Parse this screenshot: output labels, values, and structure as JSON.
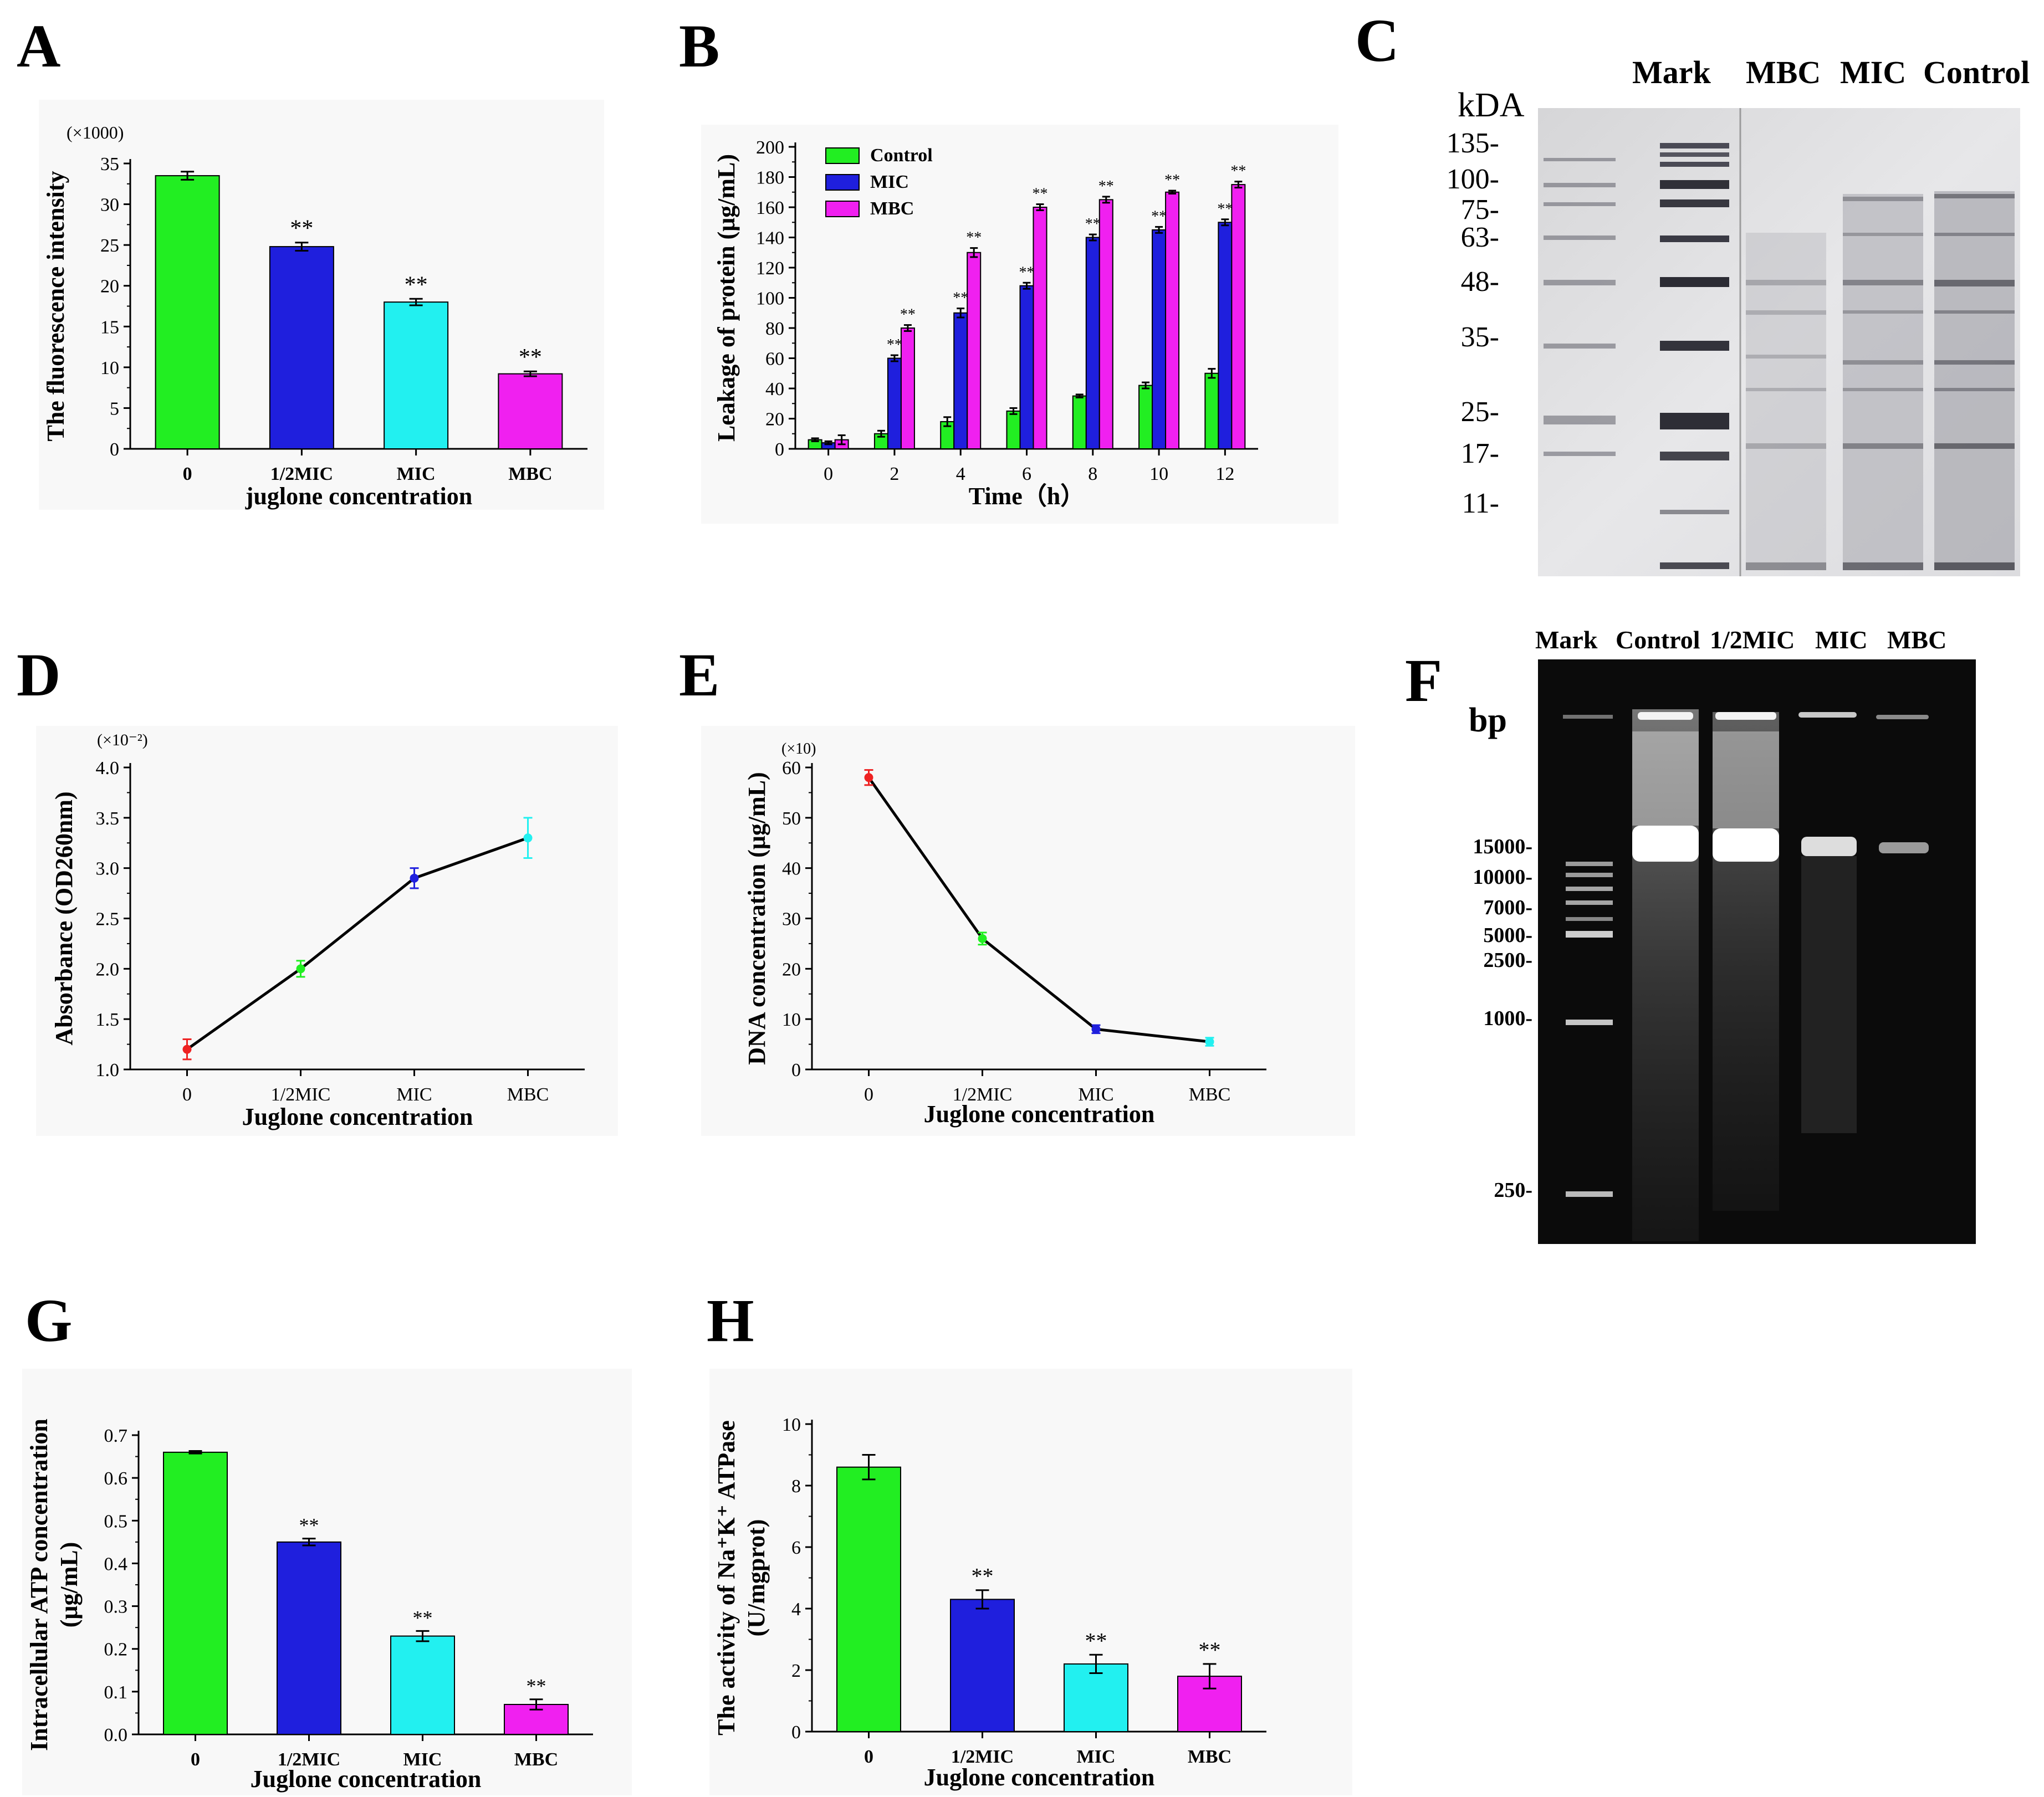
{
  "colors": {
    "green": "#22ee22",
    "blue": "#1f1fdd",
    "cyan": "#22f0f0",
    "magenta": "#f020f0",
    "red": "#ee2222",
    "black": "#000000"
  },
  "chart_data": [
    {
      "panel": "A",
      "type": "bar",
      "categories": [
        "0",
        "1/2MIC",
        "MIC",
        "MBC"
      ],
      "values": [
        33.5,
        24.8,
        18.0,
        9.2
      ],
      "errors": [
        0.5,
        0.5,
        0.4,
        0.3
      ],
      "significance": [
        "",
        "**",
        "**",
        "**"
      ],
      "colors": [
        "green",
        "blue",
        "cyan",
        "magenta"
      ],
      "ylabel": "The fluorescence intensity",
      "xlabel": "juglone concentration",
      "multiplier": "(×1000)",
      "ylim": [
        0,
        35
      ],
      "yticks": [
        0,
        5,
        10,
        15,
        20,
        25,
        30,
        35
      ]
    },
    {
      "panel": "B",
      "type": "bar",
      "x": [
        "0",
        "2",
        "4",
        "6",
        "8",
        "10",
        "12"
      ],
      "series": [
        {
          "name": "Control",
          "color": "green",
          "values": [
            6,
            10,
            18,
            25,
            35,
            42,
            50
          ],
          "errors": [
            1,
            2,
            3,
            2,
            1,
            2,
            3
          ],
          "sig": [
            "",
            "",
            "",
            "",
            "",
            "",
            ""
          ]
        },
        {
          "name": "MIC",
          "color": "blue",
          "values": [
            4,
            60,
            90,
            108,
            140,
            145,
            150
          ],
          "errors": [
            1,
            2,
            3,
            2,
            2,
            2,
            2
          ],
          "sig": [
            "",
            "**",
            "**",
            "**",
            "**",
            "**",
            "**"
          ]
        },
        {
          "name": "MBC",
          "color": "magenta",
          "values": [
            6,
            80,
            130,
            160,
            165,
            170,
            175
          ],
          "errors": [
            3,
            2,
            3,
            2,
            2,
            1,
            2
          ],
          "sig": [
            "",
            "**",
            "**",
            "**",
            "**",
            "**",
            "**"
          ]
        }
      ],
      "ylabel": "Leakage of protein (μg/mL)",
      "xlabel": "Time（h）",
      "ylim": [
        0,
        200
      ],
      "yticks": [
        0,
        20,
        40,
        60,
        80,
        100,
        120,
        140,
        160,
        180,
        200
      ]
    },
    {
      "panel": "D",
      "type": "line",
      "categories": [
        "0",
        "1/2MIC",
        "MIC",
        "MBC"
      ],
      "values": [
        1.2,
        2.0,
        2.9,
        3.3
      ],
      "errors": [
        0.1,
        0.08,
        0.1,
        0.2
      ],
      "point_colors": [
        "red",
        "green",
        "blue",
        "cyan"
      ],
      "ylabel": "Absorbance (OD260nm)",
      "xlabel": "Juglone concentration",
      "multiplier": "(×10⁻²)",
      "ylim": [
        1.0,
        4.0
      ],
      "yticks": [
        1.0,
        1.5,
        2.0,
        2.5,
        3.0,
        3.5,
        4.0
      ]
    },
    {
      "panel": "E",
      "type": "line",
      "categories": [
        "0",
        "1/2MIC",
        "MIC",
        "MBC"
      ],
      "values": [
        58,
        26,
        8,
        5.5
      ],
      "errors": [
        1.5,
        1.2,
        0.8,
        0.8
      ],
      "point_colors": [
        "red",
        "green",
        "blue",
        "cyan"
      ],
      "ylabel": "DNA concentration (μg/mL)",
      "xlabel": "Juglone concentration",
      "multiplier": "(×10)",
      "ylim": [
        0,
        60
      ],
      "yticks": [
        0,
        10,
        20,
        30,
        40,
        50,
        60
      ]
    },
    {
      "panel": "G",
      "type": "bar",
      "categories": [
        "0",
        "1/2MIC",
        "MIC",
        "MBC"
      ],
      "values": [
        0.66,
        0.45,
        0.23,
        0.07
      ],
      "errors": [
        0.003,
        0.008,
        0.012,
        0.012
      ],
      "significance": [
        "",
        "**",
        "**",
        "**"
      ],
      "colors": [
        "green",
        "blue",
        "cyan",
        "magenta"
      ],
      "ylabel_lines": [
        "Intracellular ATP concentration",
        "(μg/mL)"
      ],
      "xlabel": "Juglone concentration",
      "ylim": [
        0,
        0.7
      ],
      "yticks": [
        0.0,
        0.1,
        0.2,
        0.3,
        0.4,
        0.5,
        0.6,
        0.7
      ]
    },
    {
      "panel": "H",
      "type": "bar",
      "categories": [
        "0",
        "1/2MIC",
        "MIC",
        "MBC"
      ],
      "values": [
        8.6,
        4.3,
        2.2,
        1.8
      ],
      "errors": [
        0.4,
        0.3,
        0.3,
        0.4
      ],
      "significance": [
        "",
        "**",
        "**",
        "**"
      ],
      "colors": [
        "green",
        "blue",
        "cyan",
        "magenta"
      ],
      "ylabel_lines": [
        "The activity of Na⁺K⁺ ATPase",
        "(U/mgprot)"
      ],
      "xlabel": "Juglone concentration",
      "ylim": [
        0,
        10
      ],
      "yticks": [
        0,
        2,
        4,
        6,
        8,
        10
      ]
    }
  ],
  "gels": {
    "C": {
      "panel": "C",
      "unit": "kDA",
      "lanes": [
        "Mark",
        "MBC",
        "MIC",
        "Control"
      ],
      "markers": [
        "135-",
        "100-",
        "75-",
        "63-",
        "48-",
        "35-",
        "25-",
        "17-",
        "11-"
      ]
    },
    "F": {
      "panel": "F",
      "unit": "bp",
      "lanes": [
        "Mark",
        "Control",
        "1/2MIC",
        "MIC",
        "MBC"
      ],
      "markers": [
        "15000-",
        "10000-",
        "7000-",
        "5000-",
        "2500-",
        "1000-",
        "250-"
      ]
    }
  }
}
